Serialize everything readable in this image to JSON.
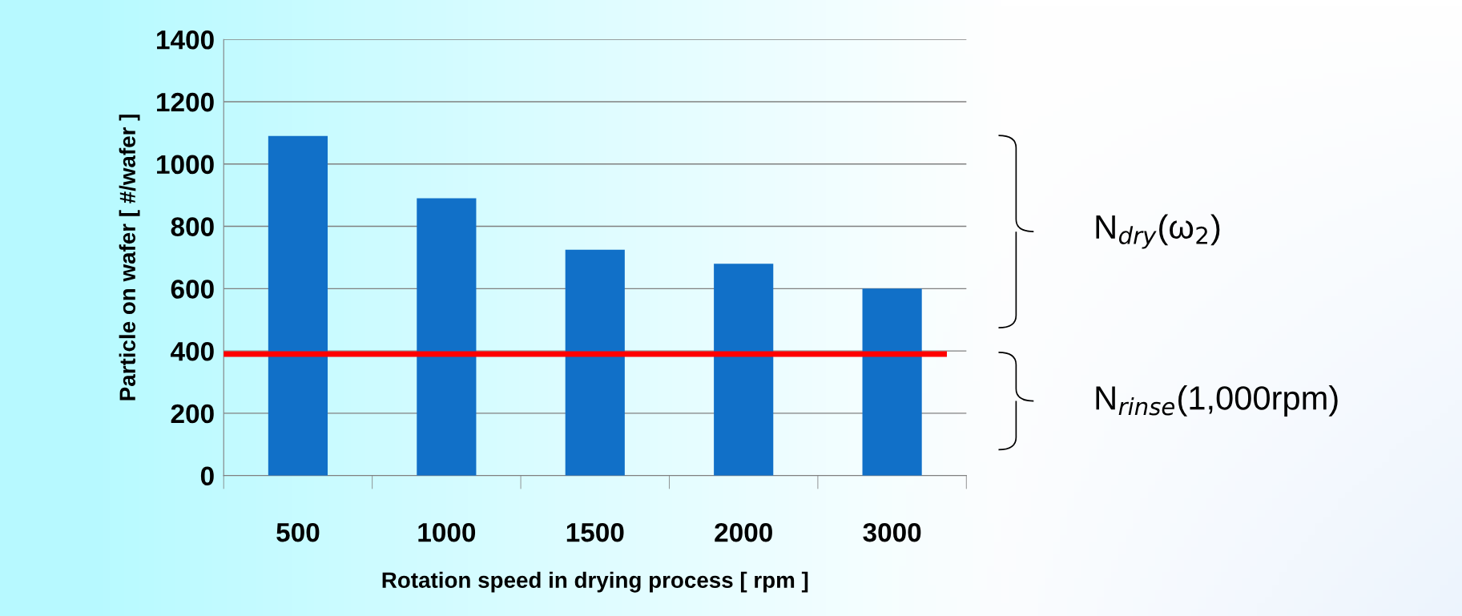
{
  "chart_data": {
    "type": "bar",
    "xlabel": "Rotation speed in drying process [ rpm ]",
    "ylabel": "Particle on wafer [ #/wafer ]",
    "categories": [
      "500",
      "1000",
      "1500",
      "2000",
      "3000"
    ],
    "values": [
      1090,
      890,
      725,
      680,
      600
    ],
    "color": "#1170c8",
    "ylim": [
      0,
      1400
    ],
    "yticks": [
      0,
      200,
      400,
      600,
      800,
      1000,
      1200,
      1400
    ],
    "grid": "y",
    "ref_lines": [
      {
        "axis": "y",
        "value": 390,
        "color": "#ff0000"
      }
    ],
    "annotations": [
      "N$_{dry}$(ω$_{2}$)",
      "N$_{rinse}$(1,000rpm)"
    ]
  }
}
